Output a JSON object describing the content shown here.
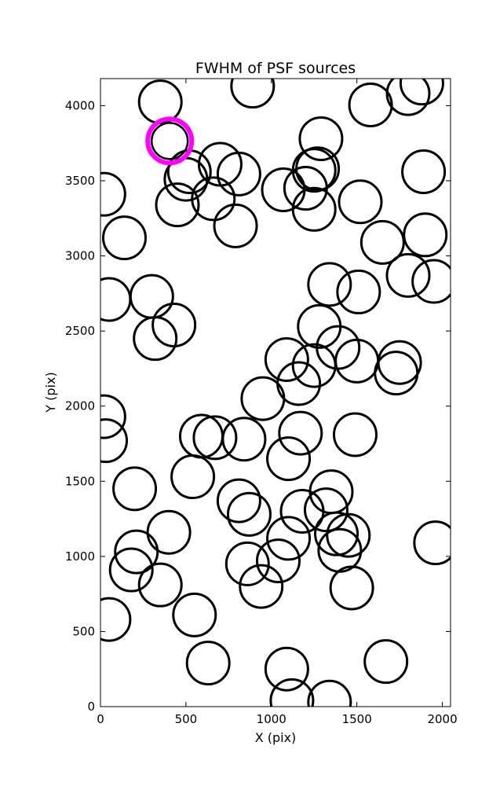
{
  "chart_data": {
    "type": "scatter",
    "title": "FWHM of PSF sources",
    "xlabel": "X (pix)",
    "ylabel": "Y (pix)",
    "xlim": [
      0,
      2048
    ],
    "ylim": [
      0,
      4180
    ],
    "xticks": [
      0,
      500,
      1000,
      1500,
      2000
    ],
    "yticks": [
      0,
      500,
      1000,
      1500,
      2000,
      2500,
      3000,
      3500,
      4000
    ],
    "marker": "open-circle",
    "marker_color": "#000000",
    "highlight_color": "#ff00ff",
    "grid": false,
    "highlighted": {
      "x": 405,
      "y": 3765
    },
    "points": [
      {
        "x": 350,
        "y": 4025
      },
      {
        "x": 890,
        "y": 4130
      },
      {
        "x": 1580,
        "y": 4005
      },
      {
        "x": 1800,
        "y": 4080
      },
      {
        "x": 1880,
        "y": 4150
      },
      {
        "x": 1290,
        "y": 3780
      },
      {
        "x": 700,
        "y": 3610
      },
      {
        "x": 810,
        "y": 3545
      },
      {
        "x": 1270,
        "y": 3580
      },
      {
        "x": 1250,
        "y": 3570
      },
      {
        "x": 1890,
        "y": 3560
      },
      {
        "x": 500,
        "y": 3510
      },
      {
        "x": 520,
        "y": 3560
      },
      {
        "x": 1070,
        "y": 3440
      },
      {
        "x": 1200,
        "y": 3450
      },
      {
        "x": 20,
        "y": 3410
      },
      {
        "x": 660,
        "y": 3380
      },
      {
        "x": 1520,
        "y": 3360
      },
      {
        "x": 450,
        "y": 3340
      },
      {
        "x": 1250,
        "y": 3310
      },
      {
        "x": 790,
        "y": 3200
      },
      {
        "x": 140,
        "y": 3120
      },
      {
        "x": 1650,
        "y": 3090
      },
      {
        "x": 1900,
        "y": 3140
      },
      {
        "x": 1340,
        "y": 2810
      },
      {
        "x": 1510,
        "y": 2760
      },
      {
        "x": 1800,
        "y": 2870
      },
      {
        "x": 1950,
        "y": 2830
      },
      {
        "x": 50,
        "y": 2710
      },
      {
        "x": 300,
        "y": 2730
      },
      {
        "x": 430,
        "y": 2540
      },
      {
        "x": 320,
        "y": 2450
      },
      {
        "x": 1280,
        "y": 2530
      },
      {
        "x": 1390,
        "y": 2390
      },
      {
        "x": 1500,
        "y": 2300
      },
      {
        "x": 1750,
        "y": 2290
      },
      {
        "x": 1730,
        "y": 2220
      },
      {
        "x": 1090,
        "y": 2310
      },
      {
        "x": 1250,
        "y": 2270
      },
      {
        "x": 1160,
        "y": 2150
      },
      {
        "x": 950,
        "y": 2050
      },
      {
        "x": 20,
        "y": 1930
      },
      {
        "x": 30,
        "y": 1770
      },
      {
        "x": 590,
        "y": 1800
      },
      {
        "x": 670,
        "y": 1790
      },
      {
        "x": 840,
        "y": 1780
      },
      {
        "x": 1170,
        "y": 1820
      },
      {
        "x": 1490,
        "y": 1810
      },
      {
        "x": 1100,
        "y": 1650
      },
      {
        "x": 540,
        "y": 1530
      },
      {
        "x": 200,
        "y": 1450
      },
      {
        "x": 810,
        "y": 1370
      },
      {
        "x": 870,
        "y": 1280
      },
      {
        "x": 1350,
        "y": 1430
      },
      {
        "x": 1320,
        "y": 1310
      },
      {
        "x": 1180,
        "y": 1300
      },
      {
        "x": 1450,
        "y": 1140
      },
      {
        "x": 1380,
        "y": 1150
      },
      {
        "x": 1400,
        "y": 1040
      },
      {
        "x": 1960,
        "y": 1090
      },
      {
        "x": 400,
        "y": 1160
      },
      {
        "x": 210,
        "y": 1030
      },
      {
        "x": 180,
        "y": 910
      },
      {
        "x": 1100,
        "y": 1120
      },
      {
        "x": 1040,
        "y": 970
      },
      {
        "x": 860,
        "y": 950
      },
      {
        "x": 350,
        "y": 810
      },
      {
        "x": 940,
        "y": 800
      },
      {
        "x": 1470,
        "y": 790
      },
      {
        "x": 50,
        "y": 580
      },
      {
        "x": 550,
        "y": 610
      },
      {
        "x": 630,
        "y": 290
      },
      {
        "x": 1090,
        "y": 250
      },
      {
        "x": 1670,
        "y": 300
      },
      {
        "x": 1120,
        "y": 40
      },
      {
        "x": 1340,
        "y": 30
      }
    ]
  }
}
